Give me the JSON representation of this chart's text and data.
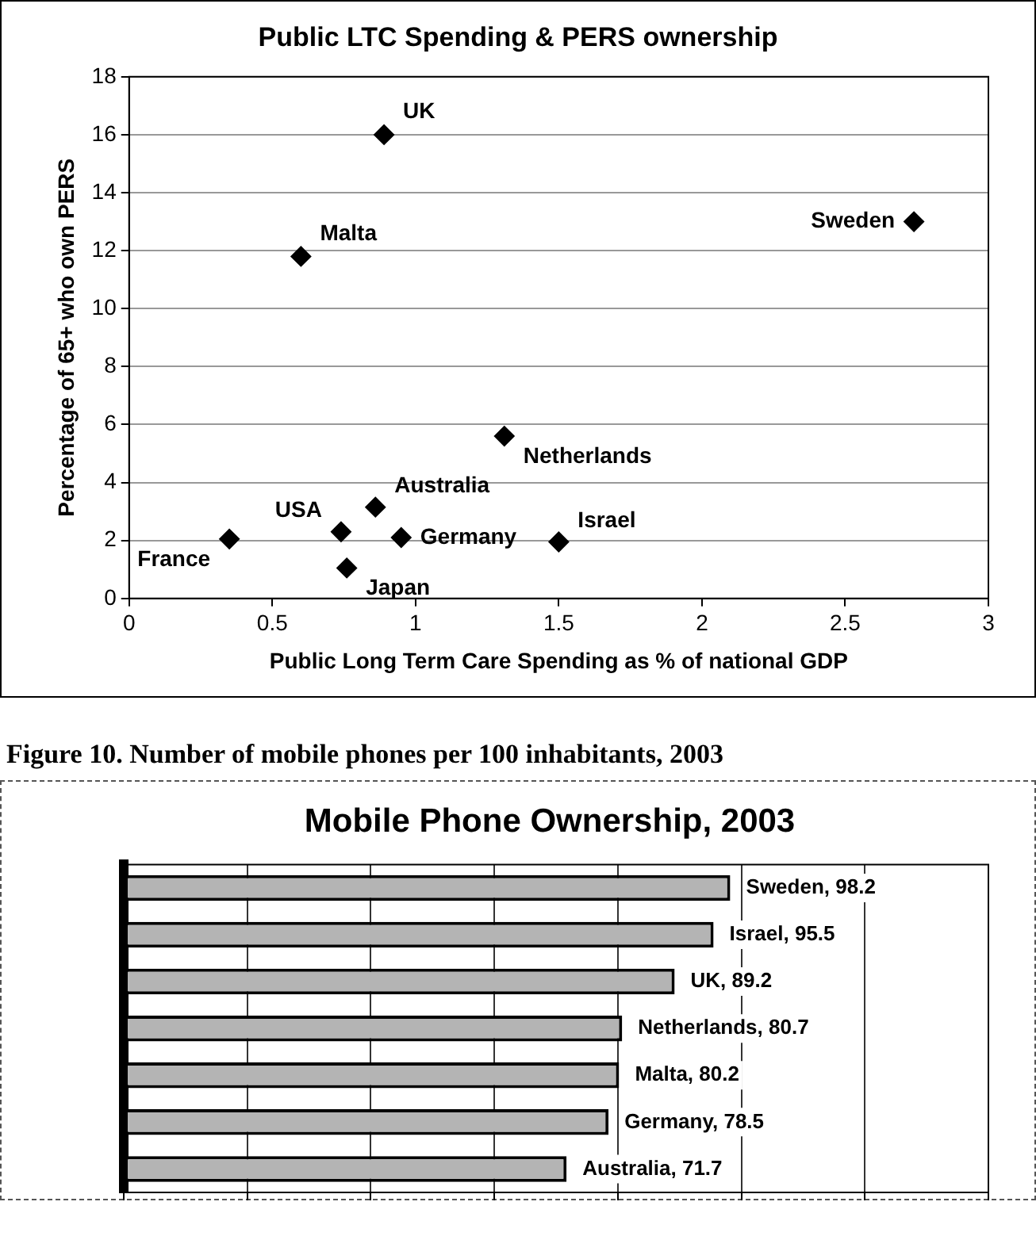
{
  "chart_data": [
    {
      "type": "scatter",
      "title": "Public LTC Spending & PERS ownership",
      "xlabel": "Public Long Term Care Spending as % of national GDP",
      "ylabel": "Percentage of 65+ who own PERS",
      "series": [
        {
          "name": "France",
          "color": "#000000",
          "x": [
            0.35
          ],
          "values": [
            2.05
          ]
        },
        {
          "name": "USA",
          "color": "#000000",
          "x": [
            0.74
          ],
          "values": [
            2.3
          ]
        },
        {
          "name": "Japan",
          "color": "#000000",
          "x": [
            0.76
          ],
          "values": [
            1.05
          ]
        },
        {
          "name": "Australia",
          "color": "#000000",
          "x": [
            0.86
          ],
          "values": [
            3.15
          ]
        },
        {
          "name": "Germany",
          "color": "#000000",
          "x": [
            0.95
          ],
          "values": [
            2.1
          ]
        },
        {
          "name": "UK",
          "color": "#000000",
          "x": [
            0.89
          ],
          "values": [
            16
          ]
        },
        {
          "name": "Malta",
          "color": "#000000",
          "x": [
            0.6
          ],
          "values": [
            11.8
          ]
        },
        {
          "name": "Netherlands",
          "color": "#000000",
          "x": [
            1.31
          ],
          "values": [
            5.6
          ]
        },
        {
          "name": "Israel",
          "color": "#000000",
          "x": [
            1.5
          ],
          "values": [
            1.95
          ]
        },
        {
          "name": "Sweden",
          "color": "#000000",
          "x": [
            2.74
          ],
          "values": [
            13
          ]
        }
      ],
      "xlim": [
        0,
        3
      ],
      "xticks": [
        0,
        0.5,
        1,
        1.5,
        2,
        2.5,
        3
      ],
      "ylim": [
        0,
        18
      ],
      "yticks": [
        0,
        2,
        4,
        6,
        8,
        10,
        12,
        14,
        16,
        18
      ],
      "grid": "y",
      "marker": "diamond"
    },
    {
      "type": "bar",
      "orientation": "horizontal",
      "title": "Mobile Phone Ownership, 2003",
      "annotations": [
        "Figure 10. Number of mobile phones per 100 inhabitants, 2003"
      ],
      "categories": [
        null,
        null,
        null,
        null,
        null,
        null,
        null
      ],
      "values": [
        98.2,
        95.5,
        89.2,
        80.7,
        80.2,
        78.5,
        71.7
      ],
      "value_labels": [
        "Sweden, 98.2",
        "Israel, 95.5",
        "UK, 89.2",
        "Netherlands, 80.7",
        "Malta, 80.2",
        "Germany, 78.5",
        "Australia, 71.7"
      ],
      "color": "#b4b4b4",
      "grid": "x",
      "tick_labels": false
    }
  ]
}
